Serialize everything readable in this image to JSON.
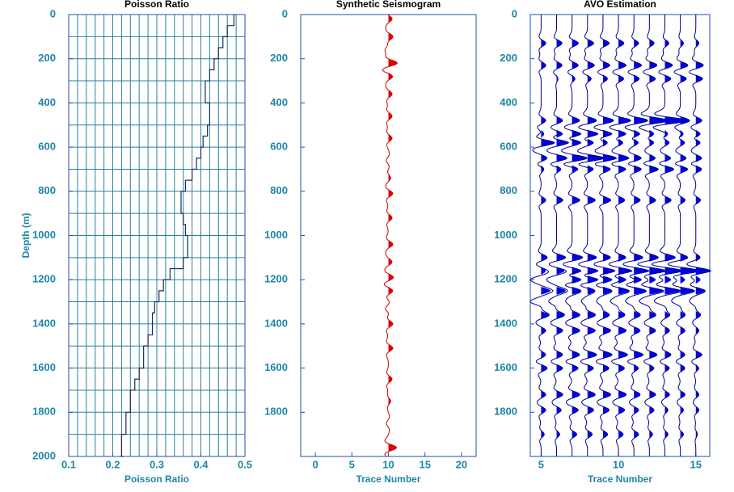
{
  "chart_data": [
    {
      "type": "line",
      "title": "Poisson Ratio",
      "xlabel": "Poisson Ratio",
      "ylabel": "Depth (m)",
      "xlim": [
        0.1,
        0.5
      ],
      "xticks": [
        0.1,
        0.2,
        0.3,
        0.4,
        0.5
      ],
      "ylim": [
        0,
        2000
      ],
      "yticks": [
        0,
        200,
        400,
        600,
        800,
        1000,
        1200,
        1400,
        1600,
        1800,
        2000
      ],
      "grid": {
        "x": 0.02,
        "y": 100
      },
      "color": "#1a2a5c",
      "depth": [
        0,
        50,
        100,
        150,
        200,
        250,
        300,
        350,
        400,
        450,
        500,
        550,
        600,
        650,
        700,
        750,
        800,
        850,
        900,
        950,
        1000,
        1050,
        1100,
        1150,
        1200,
        1250,
        1300,
        1350,
        1400,
        1450,
        1500,
        1550,
        1600,
        1650,
        1700,
        1750,
        1800,
        1850,
        1900,
        1950,
        2000
      ],
      "values": [
        0.475,
        0.46,
        0.45,
        0.44,
        0.43,
        0.42,
        0.41,
        0.41,
        0.42,
        0.42,
        0.415,
        0.405,
        0.4,
        0.39,
        0.38,
        0.365,
        0.355,
        0.355,
        0.36,
        0.365,
        0.37,
        0.37,
        0.36,
        0.33,
        0.315,
        0.305,
        0.295,
        0.29,
        0.29,
        0.28,
        0.27,
        0.27,
        0.26,
        0.25,
        0.24,
        0.24,
        0.23,
        0.23,
        0.22,
        0.22,
        0.225
      ]
    },
    {
      "type": "wiggle",
      "title": "Synthetic Seismogram",
      "xlabel": "Trace Number",
      "xlim": [
        -2,
        22
      ],
      "xticks": [
        0,
        5,
        10,
        15,
        20
      ],
      "ylim": [
        0,
        2000
      ],
      "yticks": [
        0,
        200,
        400,
        600,
        800,
        1000,
        1200,
        1400,
        1600,
        1800
      ],
      "color": "#e00000",
      "line_color": "#cc0000",
      "depth": [
        20,
        100,
        160,
        220,
        280,
        360,
        460,
        560,
        660,
        740,
        810,
        920,
        1040,
        1120,
        1190,
        1250,
        1330,
        1400,
        1510,
        1650,
        1750,
        1850,
        1960
      ],
      "traces": [
        {
          "x": 10,
          "amplitude": [
            0.5,
            0.6,
            -0.4,
            1.2,
            0.6,
            0.5,
            0.5,
            0.5,
            -0.3,
            0.3,
            0.6,
            0.5,
            0.6,
            0.5,
            0.7,
            0.6,
            -0.4,
            0.6,
            0.6,
            0.5,
            0.3,
            -0.3,
            1.1
          ]
        }
      ]
    },
    {
      "type": "wiggle",
      "title": "AVO Estimation",
      "xlabel": "Trace Number",
      "xlim": [
        4.3,
        15.9
      ],
      "xticks": [
        5,
        10,
        15
      ],
      "ylim": [
        0,
        2000
      ],
      "yticks": [
        0,
        200,
        400,
        600,
        800,
        1000,
        1200,
        1400,
        1600,
        1800
      ],
      "color": "#0000e0",
      "line_color": "#00008b",
      "depth": [
        130,
        230,
        290,
        480,
        540,
        580,
        650,
        700,
        840,
        1100,
        1160,
        1200,
        1250,
        1300,
        1360,
        1430,
        1540,
        1600,
        1720,
        1790,
        1900
      ],
      "traces": [
        {
          "x": 5,
          "amplitude": [
            0.3,
            0.3,
            0,
            0.3,
            0.2,
            0.9,
            0.4,
            0.2,
            0.3,
            0.4,
            0.3,
            -0.5,
            0.6,
            -0.6,
            0.5,
            0.3,
            0.3,
            0.4,
            0.3,
            0.3,
            0.2
          ]
        },
        {
          "x": 6,
          "amplitude": [
            0.35,
            0.35,
            0.1,
            0.4,
            0.4,
            0.8,
            0.7,
            0.3,
            0.4,
            0.6,
            0.5,
            -0.4,
            0.6,
            -0.4,
            0.5,
            0.4,
            0.4,
            0.4,
            0.4,
            0.3,
            0.2
          ]
        },
        {
          "x": 7,
          "amplitude": [
            0.4,
            0.4,
            0.2,
            0.5,
            0.6,
            0.6,
            1.0,
            0.4,
            0.5,
            0.7,
            0.6,
            0.6,
            0.6,
            -0.3,
            0.5,
            0.5,
            0.5,
            0.4,
            0.5,
            0.4,
            0.3
          ]
        },
        {
          "x": 8,
          "amplitude": [
            0.4,
            0.45,
            0.25,
            0.6,
            0.7,
            0.4,
            1.1,
            0.4,
            0.5,
            0.6,
            0.7,
            0.7,
            0.5,
            -0.3,
            0.5,
            0.5,
            0.6,
            0.4,
            0.5,
            0.4,
            0.3
          ]
        },
        {
          "x": 9,
          "amplitude": [
            0.4,
            0.45,
            0.3,
            0.7,
            0.6,
            0.3,
            0.9,
            0.5,
            0.5,
            0.5,
            0.8,
            0.6,
            0.6,
            -0.3,
            0.4,
            0.5,
            0.6,
            0.4,
            0.5,
            0.4,
            0.3
          ]
        },
        {
          "x": 10,
          "amplitude": [
            0.35,
            0.5,
            0.35,
            0.8,
            0.5,
            0.3,
            0.7,
            0.5,
            0.4,
            0.5,
            0.9,
            0.5,
            0.7,
            -0.4,
            0.4,
            0.5,
            0.6,
            0.4,
            0.5,
            0.4,
            0.3
          ]
        },
        {
          "x": 11,
          "amplitude": [
            0.3,
            0.5,
            0.35,
            0.9,
            0.4,
            0.3,
            0.5,
            0.5,
            0.4,
            0.6,
            1.0,
            0.5,
            0.8,
            -0.4,
            0.4,
            0.4,
            0.6,
            0.3,
            0.4,
            0.3,
            0.3
          ]
        },
        {
          "x": 12,
          "amplitude": [
            0.3,
            0.5,
            0.4,
            1.2,
            0.3,
            0.3,
            0.4,
            0.6,
            0.4,
            0.6,
            1.1,
            0.4,
            0.9,
            -0.5,
            0.4,
            0.4,
            0.5,
            0.3,
            0.4,
            0.3,
            0.2
          ]
        },
        {
          "x": 13,
          "amplitude": [
            0.25,
            0.5,
            0.4,
            1.5,
            0.2,
            0.3,
            0.4,
            0.6,
            0.4,
            0.7,
            1.2,
            0.4,
            1.0,
            -0.5,
            0.3,
            0.3,
            0.4,
            0.3,
            0.3,
            0.2,
            0.2
          ]
        },
        {
          "x": 14,
          "amplitude": [
            0.2,
            0.5,
            0.4,
            0.6,
            0.2,
            0.3,
            0.4,
            0.5,
            0.3,
            0.5,
            1.3,
            0.3,
            0.9,
            -0.4,
            0.3,
            0.3,
            0.3,
            0.3,
            0.3,
            0.2,
            0.2
          ]
        },
        {
          "x": 15,
          "amplitude": [
            0.2,
            0.5,
            0.45,
            0.4,
            0.3,
            0.3,
            0.4,
            0.4,
            0.3,
            0.3,
            1.0,
            0.3,
            0.6,
            -0.3,
            0.3,
            0.2,
            0.4,
            0.2,
            0.2,
            0.2,
            0.1
          ]
        }
      ]
    }
  ]
}
